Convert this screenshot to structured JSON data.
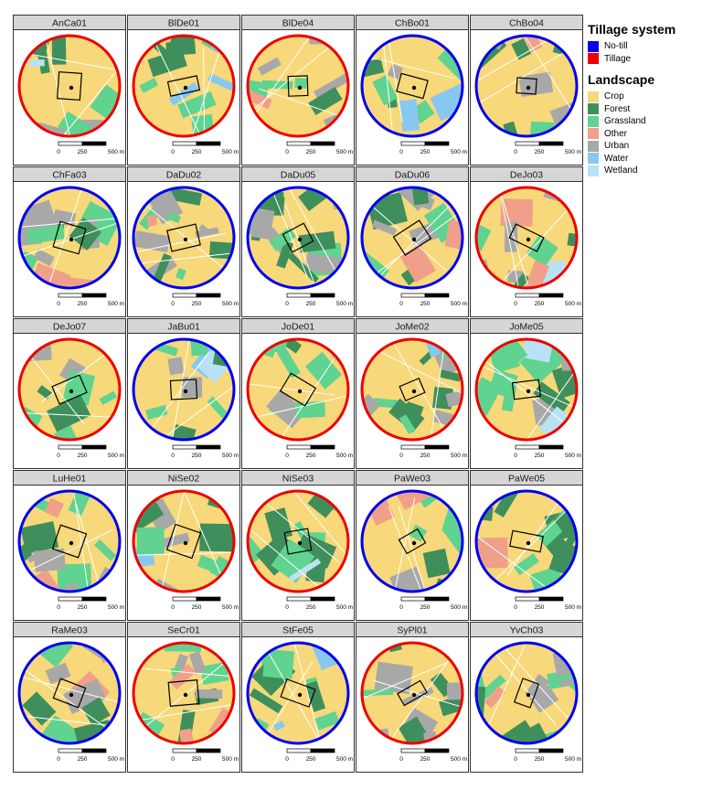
{
  "panels": [
    {
      "id": "AnCa01",
      "tillage": "Tillage"
    },
    {
      "id": "BlDe01",
      "tillage": "Tillage"
    },
    {
      "id": "BlDe04",
      "tillage": "Tillage"
    },
    {
      "id": "ChBo01",
      "tillage": "No-till"
    },
    {
      "id": "ChBo04",
      "tillage": "No-till"
    },
    {
      "id": "ChFa03",
      "tillage": "No-till"
    },
    {
      "id": "DaDu02",
      "tillage": "No-till"
    },
    {
      "id": "DaDu05",
      "tillage": "No-till"
    },
    {
      "id": "DaDu06",
      "tillage": "No-till"
    },
    {
      "id": "DeJo03",
      "tillage": "Tillage"
    },
    {
      "id": "DeJo07",
      "tillage": "Tillage"
    },
    {
      "id": "JaBu01",
      "tillage": "No-till"
    },
    {
      "id": "JoDe01",
      "tillage": "Tillage"
    },
    {
      "id": "JoMe02",
      "tillage": "Tillage"
    },
    {
      "id": "JoMe05",
      "tillage": "Tillage"
    },
    {
      "id": "LuHe01",
      "tillage": "No-till"
    },
    {
      "id": "NiSe02",
      "tillage": "Tillage"
    },
    {
      "id": "NiSe03",
      "tillage": "Tillage"
    },
    {
      "id": "PaWe03",
      "tillage": "No-till"
    },
    {
      "id": "PaWe05",
      "tillage": "No-till"
    },
    {
      "id": "RaMe03",
      "tillage": "No-till"
    },
    {
      "id": "SeCr01",
      "tillage": "Tillage"
    },
    {
      "id": "StFe05",
      "tillage": "No-till"
    },
    {
      "id": "SyPl01",
      "tillage": "Tillage"
    },
    {
      "id": "YvCh03",
      "tillage": "No-till"
    }
  ],
  "scalebar": {
    "labels": [
      "0",
      "250",
      "500 m"
    ]
  },
  "legend": {
    "tillage_title": "Tillage system",
    "tillage_items": [
      {
        "label": "No-till",
        "color": "#0000ee"
      },
      {
        "label": "Tillage",
        "color": "#ee0000"
      }
    ],
    "landscape_title": "Landscape",
    "landscape_items": [
      {
        "label": "Crop",
        "color": "#f7d87a"
      },
      {
        "label": "Forest",
        "color": "#3e8f5b"
      },
      {
        "label": "Grassland",
        "color": "#5fd38f"
      },
      {
        "label": "Other",
        "color": "#f0a08a"
      },
      {
        "label": "Urban",
        "color": "#a8a8a8"
      },
      {
        "label": "Water",
        "color": "#86c8ef"
      },
      {
        "label": "Wetland",
        "color": "#b8e2f5"
      }
    ]
  }
}
